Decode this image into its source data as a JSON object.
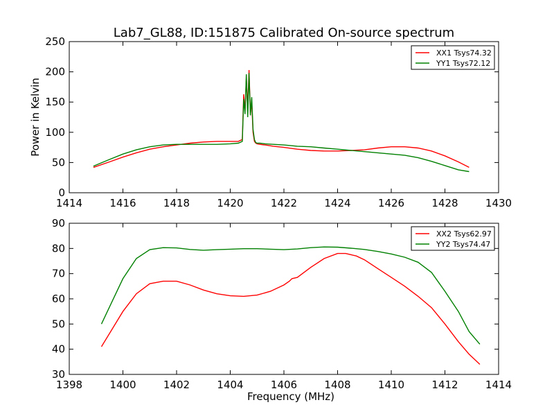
{
  "figure": {
    "title": "Lab7_GL88, ID:151875 Calibrated On-source spectrum"
  },
  "chart_data": [
    {
      "type": "line",
      "title": "Lab7_GL88, ID:151875 Calibrated On-source spectrum",
      "xlabel": "",
      "ylabel": "Power in Kelvin",
      "xlim": [
        1414,
        1430
      ],
      "ylim": [
        0,
        250
      ],
      "xticks": [
        1414,
        1416,
        1418,
        1420,
        1422,
        1424,
        1426,
        1428,
        1430
      ],
      "yticks": [
        0,
        50,
        100,
        150,
        200,
        250
      ],
      "legend_position": "top-right",
      "series": [
        {
          "name": "XX1 Tsys74.32",
          "color": "#ff0000",
          "x": [
            1414.9,
            1415.5,
            1416,
            1416.5,
            1417,
            1417.5,
            1418,
            1418.5,
            1419,
            1419.5,
            1420,
            1420.3,
            1420.45,
            1420.5,
            1420.55,
            1420.6,
            1420.65,
            1420.7,
            1420.75,
            1420.8,
            1420.85,
            1420.9,
            1420.95,
            1421.0,
            1421.1,
            1421.3,
            1421.6,
            1422,
            1422.5,
            1423,
            1423.5,
            1424,
            1424.5,
            1425,
            1425.5,
            1426,
            1426.5,
            1427,
            1427.5,
            1428,
            1428.5,
            1428.9
          ],
          "y": [
            42,
            51,
            59,
            66,
            72,
            76,
            79,
            82,
            84,
            85,
            85,
            85,
            88,
            163,
            135,
            190,
            140,
            203,
            130,
            150,
            100,
            85,
            82,
            81,
            80,
            79,
            77,
            75,
            72,
            70,
            69,
            69,
            70,
            71,
            74,
            76,
            76,
            74,
            69,
            61,
            51,
            42
          ]
        },
        {
          "name": "YY1 Tsys72.12",
          "color": "#008000",
          "x": [
            1414.9,
            1415.5,
            1416,
            1416.5,
            1417,
            1417.5,
            1418,
            1418.5,
            1419,
            1419.5,
            1420,
            1420.3,
            1420.45,
            1420.5,
            1420.55,
            1420.6,
            1420.65,
            1420.7,
            1420.75,
            1420.8,
            1420.85,
            1420.9,
            1420.95,
            1421.0,
            1421.1,
            1421.3,
            1421.6,
            1422,
            1422.5,
            1423,
            1423.5,
            1424,
            1424.5,
            1425,
            1425.5,
            1426,
            1426.5,
            1427,
            1427.5,
            1428,
            1428.5,
            1428.9
          ],
          "y": [
            44,
            55,
            64,
            71,
            76,
            79,
            80,
            80,
            80,
            80,
            81,
            82,
            85,
            155,
            130,
            196,
            125,
            198,
            128,
            158,
            105,
            88,
            83,
            82,
            82,
            81,
            80,
            79,
            77,
            76,
            74,
            72,
            70,
            68,
            66,
            64,
            62,
            58,
            52,
            45,
            38,
            35
          ]
        }
      ]
    },
    {
      "type": "line",
      "title": "",
      "xlabel": "Frequency (MHz)",
      "ylabel": "",
      "xlim": [
        1398,
        1414
      ],
      "ylim": [
        30,
        90
      ],
      "xticks": [
        1398,
        1400,
        1402,
        1404,
        1406,
        1408,
        1410,
        1412,
        1414
      ],
      "yticks": [
        30,
        40,
        50,
        60,
        70,
        80,
        90
      ],
      "legend_position": "top-right",
      "series": [
        {
          "name": "XX2 Tsys62.97",
          "color": "#ff0000",
          "x": [
            1399.2,
            1399.6,
            1400,
            1400.5,
            1401,
            1401.5,
            1402,
            1402.5,
            1403,
            1403.5,
            1404,
            1404.5,
            1405,
            1405.5,
            1406,
            1406.2,
            1406.3,
            1406.5,
            1407,
            1407.5,
            1408,
            1408.3,
            1408.7,
            1409,
            1409.5,
            1410,
            1410.5,
            1411,
            1411.5,
            1412,
            1412.5,
            1412.9,
            1413.3
          ],
          "y": [
            41,
            48,
            55,
            62,
            66,
            67,
            67,
            65.5,
            63.5,
            62,
            61.2,
            61,
            61.5,
            63,
            65.5,
            67,
            68,
            68.5,
            72.5,
            76,
            78,
            78,
            77,
            75.5,
            72,
            68.5,
            65,
            61,
            56.5,
            50,
            43,
            38,
            34
          ]
        },
        {
          "name": "YY2 Tsys74.47",
          "color": "#008000",
          "x": [
            1399.2,
            1399.6,
            1400,
            1400.5,
            1401,
            1401.5,
            1402,
            1402.5,
            1403,
            1403.5,
            1404,
            1404.5,
            1405,
            1405.5,
            1406,
            1406.5,
            1407,
            1407.5,
            1408,
            1408.5,
            1409,
            1409.5,
            1410,
            1410.5,
            1411,
            1411.5,
            1412,
            1412.5,
            1412.9,
            1413.3
          ],
          "y": [
            50,
            59,
            68,
            76,
            79.5,
            80.3,
            80.2,
            79.6,
            79.3,
            79.5,
            79.7,
            79.9,
            79.9,
            79.7,
            79.5,
            79.8,
            80.3,
            80.6,
            80.5,
            80.1,
            79.6,
            78.8,
            77.8,
            76.5,
            74.5,
            70.5,
            63,
            55,
            47,
            42
          ]
        }
      ]
    }
  ]
}
